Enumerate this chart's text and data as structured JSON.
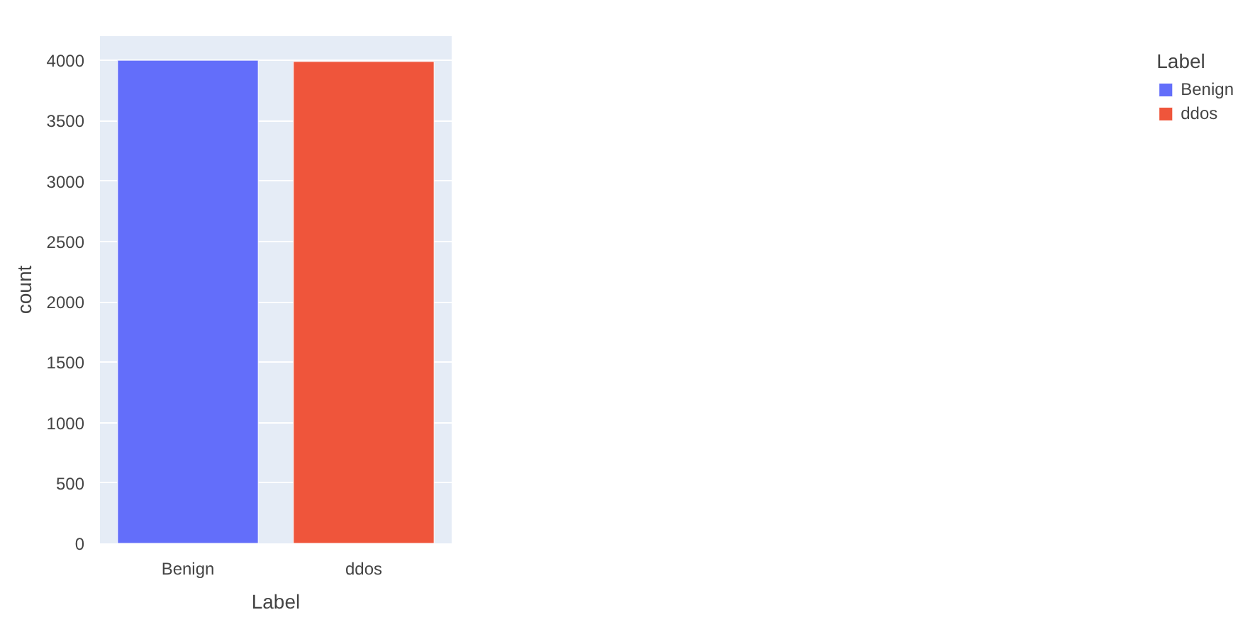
{
  "chart_data": {
    "type": "bar",
    "xlabel": "Label",
    "ylabel": "count",
    "legend_title": "Label",
    "categories": [
      "Benign",
      "ddos"
    ],
    "series": [
      {
        "name": "Benign",
        "color": "#636efa",
        "values": [
          4000,
          null
        ]
      },
      {
        "name": "ddos",
        "color": "#ef553b",
        "values": [
          null,
          3990
        ]
      }
    ],
    "ylim": [
      0,
      4200
    ],
    "yticks": [
      0,
      500,
      1000,
      1500,
      2000,
      2500,
      3000,
      3500,
      4000
    ],
    "grid": "y",
    "legend": "top right"
  }
}
